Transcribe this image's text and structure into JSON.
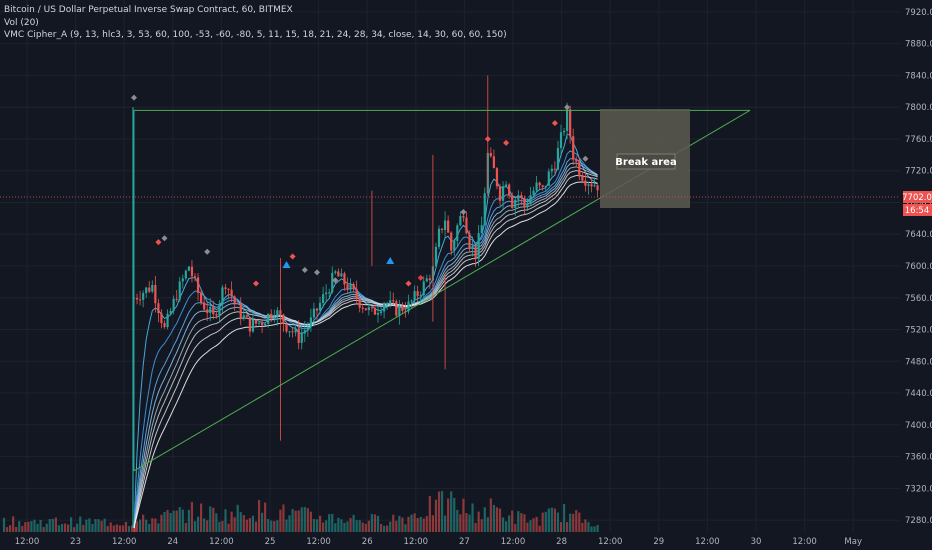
{
  "legend": {
    "title": "Bitcoin / US Dollar Perpetual Inverse Swap Contract, 60, BITMEX",
    "volume": "Vol (20)",
    "indicator": "VMC Cipher_A (9, 13, hlc3, 3, 53, 60, 100, -53, -60, -80, 5, 11, 15, 18, 21, 24, 28, 34, close, 14, 30, 60, 60, 150)"
  },
  "colors": {
    "background": "#131722",
    "grid": "#1e222d",
    "up": "#26a69a",
    "down": "#ef5350",
    "trendline": "#4caf50",
    "price_line": "#ef5350",
    "break_box": "#5d5a50"
  },
  "annotations": {
    "break_area": "Break area",
    "current_price": "7702.0",
    "countdown": "16:54"
  },
  "chart_data": {
    "type": "candlestick",
    "symbol": "XBTUSD",
    "exchange": "BITMEX",
    "interval": "60",
    "y_axis": {
      "ticks": [
        "7920.0",
        "7880.0",
        "7840.0",
        "7800.0",
        "7760.0",
        "7720.0",
        "7680.0",
        "7640.0",
        "7600.0",
        "7560.0",
        "7520.0",
        "7480.0",
        "7440.0",
        "7400.0",
        "7360.0",
        "7320.0",
        "7280.0"
      ],
      "range": [
        7265,
        7935
      ]
    },
    "x_axis": {
      "ticks": [
        "12:00",
        "23",
        "12:00",
        "24",
        "12:00",
        "25",
        "12:00",
        "26",
        "12:00",
        "27",
        "12:00",
        "28",
        "12:00",
        "29",
        "12:00",
        "30",
        "12:00",
        "May"
      ]
    },
    "price_path": [
      [
        0,
        7560
      ],
      [
        6,
        7575
      ],
      [
        10,
        7520
      ],
      [
        14,
        7565
      ],
      [
        18,
        7600
      ],
      [
        22,
        7555
      ],
      [
        26,
        7535
      ],
      [
        30,
        7580
      ],
      [
        34,
        7545
      ],
      [
        38,
        7525
      ],
      [
        42,
        7530
      ],
      [
        46,
        7545
      ],
      [
        50,
        7525
      ],
      [
        54,
        7510
      ],
      [
        58,
        7530
      ],
      [
        62,
        7560
      ],
      [
        66,
        7590
      ],
      [
        70,
        7575
      ],
      [
        74,
        7555
      ],
      [
        78,
        7540
      ],
      [
        82,
        7555
      ],
      [
        86,
        7545
      ],
      [
        90,
        7550
      ],
      [
        94,
        7570
      ],
      [
        98,
        7595
      ],
      [
        100,
        7640
      ],
      [
        102,
        7660
      ],
      [
        104,
        7620
      ],
      [
        106,
        7650
      ],
      [
        108,
        7670
      ],
      [
        110,
        7630
      ],
      [
        112,
        7615
      ],
      [
        114,
        7650
      ],
      [
        116,
        7740
      ],
      [
        118,
        7720
      ],
      [
        120,
        7690
      ],
      [
        122,
        7710
      ],
      [
        124,
        7680
      ],
      [
        126,
        7690
      ],
      [
        128,
        7675
      ],
      [
        130,
        7690
      ],
      [
        132,
        7700
      ],
      [
        134,
        7695
      ],
      [
        136,
        7715
      ],
      [
        138,
        7730
      ],
      [
        140,
        7760
      ],
      [
        142,
        7790
      ],
      [
        144,
        7740
      ],
      [
        146,
        7720
      ],
      [
        148,
        7710
      ],
      [
        150,
        7705
      ],
      [
        152,
        7702
      ]
    ],
    "volume_path": [
      [
        0,
        12
      ],
      [
        10,
        18
      ],
      [
        20,
        24
      ],
      [
        30,
        20
      ],
      [
        40,
        26
      ],
      [
        50,
        22
      ],
      [
        60,
        18
      ],
      [
        70,
        16
      ],
      [
        80,
        14
      ],
      [
        90,
        18
      ],
      [
        98,
        30
      ],
      [
        104,
        34
      ],
      [
        112,
        22
      ],
      [
        118,
        28
      ],
      [
        124,
        18
      ],
      [
        132,
        14
      ],
      [
        140,
        24
      ],
      [
        146,
        16
      ],
      [
        152,
        12
      ]
    ],
    "triangle": {
      "resistance": 7796,
      "support_start": [
        0,
        7342
      ],
      "support_end": [
        161,
        7796
      ]
    },
    "current_price": 7702.0
  }
}
